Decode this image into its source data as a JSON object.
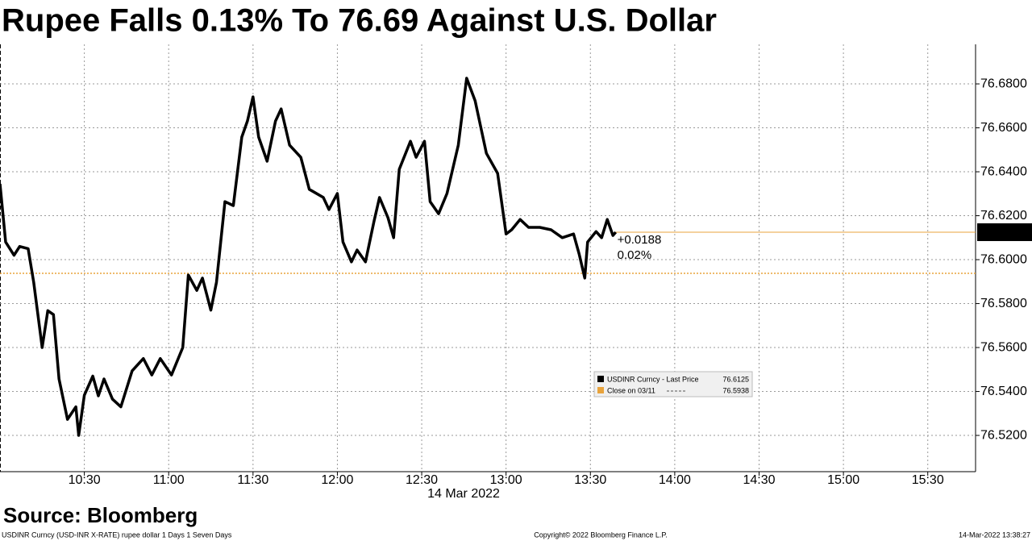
{
  "chart_data": {
    "type": "line",
    "title": "Rupee Falls 0.13% To 76.69 Against U.S. Dollar",
    "x_label": "14 Mar 2022",
    "x": [
      "10:00",
      "10:02",
      "10:05",
      "10:07",
      "10:10",
      "10:12",
      "10:15",
      "10:17",
      "10:19",
      "10:21",
      "10:24",
      "10:27",
      "10:28",
      "10:30",
      "10:33",
      "10:35",
      "10:37",
      "10:40",
      "10:43",
      "10:47",
      "10:51",
      "10:54",
      "10:57",
      "11:01",
      "11:05",
      "11:07",
      "11:10",
      "11:12",
      "11:15",
      "11:17",
      "11:20",
      "11:23",
      "11:26",
      "11:28",
      "11:30",
      "11:32",
      "11:35",
      "11:38",
      "11:40",
      "11:43",
      "11:47",
      "11:50",
      "11:55",
      "11:57",
      "12:00",
      "12:02",
      "12:05",
      "12:07",
      "12:10",
      "12:13",
      "12:15",
      "12:18",
      "12:20",
      "12:22",
      "12:26",
      "12:28",
      "12:31",
      "12:33",
      "12:36",
      "12:39",
      "12:43",
      "12:46",
      "12:49",
      "12:53",
      "12:57",
      "13:00",
      "13:02",
      "13:05",
      "13:08",
      "13:12",
      "13:16",
      "13:20",
      "13:24",
      "13:26",
      "13:28",
      "13:29",
      "13:32",
      "13:34",
      "13:36",
      "13:38",
      "13:39"
    ],
    "series": [
      {
        "name": "USDINR Curncy - Last Price",
        "color": "#000000",
        "values": [
          76.6345,
          76.608,
          76.602,
          76.606,
          76.605,
          76.5897,
          76.56,
          76.5768,
          76.575,
          76.5457,
          76.5273,
          76.533,
          76.52,
          76.5383,
          76.547,
          76.538,
          76.5457,
          76.5365,
          76.533,
          76.5494,
          76.555,
          76.5475,
          76.555,
          76.5475,
          76.56,
          76.593,
          76.586,
          76.5916,
          76.577,
          76.5897,
          76.6264,
          76.6246,
          76.6558,
          76.6631,
          76.6741,
          76.6558,
          76.6448,
          76.6631,
          76.6686,
          76.6521,
          76.6466,
          76.632,
          76.6283,
          76.6228,
          76.6301,
          76.608,
          76.599,
          76.6044,
          76.599,
          76.6173,
          76.6283,
          76.6191,
          76.61,
          76.6411,
          76.6539,
          76.6466,
          76.6539,
          76.6264,
          76.6209,
          76.6301,
          76.6521,
          76.6826,
          76.6723,
          76.6484,
          76.6393,
          76.6117,
          76.6136,
          76.6183,
          76.6147,
          76.6147,
          76.6136,
          76.61,
          76.6117,
          76.6026,
          76.5916,
          76.608,
          76.6128,
          76.61,
          76.6183,
          76.611,
          76.6125
        ]
      }
    ],
    "last_price": 76.6125,
    "close": {
      "name": "Close on 03/11",
      "value": 76.5938,
      "color": "#e8a33c"
    },
    "change": "+0.0188",
    "change_pct": "0.02%",
    "xlim": [
      "10:00",
      "15:47"
    ],
    "xticks": [
      "10:30",
      "11:00",
      "11:30",
      "12:00",
      "12:30",
      "13:00",
      "13:30",
      "14:00",
      "14:30",
      "15:00",
      "15:30"
    ],
    "ylim": [
      76.5035,
      76.698
    ],
    "yticks": [
      {
        "value": 76.52,
        "label": "76.5200"
      },
      {
        "value": 76.54,
        "label": "76.5400"
      },
      {
        "value": 76.56,
        "label": "76.5600"
      },
      {
        "value": 76.58,
        "label": "76.5800"
      },
      {
        "value": 76.6,
        "label": "76.6000"
      },
      {
        "value": 76.62,
        "label": "76.6200"
      },
      {
        "value": 76.64,
        "label": "76.6400"
      },
      {
        "value": 76.66,
        "label": "76.6600"
      },
      {
        "value": 76.68,
        "label": "76.6800"
      }
    ],
    "grid": true,
    "source": "Source: Bloomberg",
    "footer_left": "USDINR Curncy (USD-INR X-RATE) rupee dollar 1 Days 1 Seven Days",
    "footer_center": "Copyright© 2022 Bloomberg Finance L.P.",
    "footer_right": "14-Mar-2022 13:38:27"
  }
}
